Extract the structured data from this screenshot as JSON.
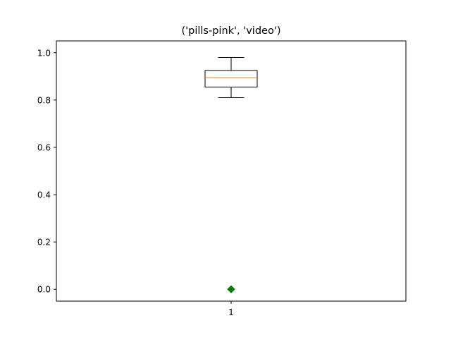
{
  "chart_data": {
    "type": "box",
    "title": "('pills-pink', 'video')",
    "xlabel": "",
    "ylabel": "",
    "categories": [
      "1"
    ],
    "ylim": [
      -0.05,
      1.05
    ],
    "yticks": [
      0.0,
      0.2,
      0.4,
      0.6,
      0.8,
      1.0
    ],
    "ytick_labels": [
      "0.0",
      "0.2",
      "0.4",
      "0.6",
      "0.8",
      "1.0"
    ],
    "grid": false,
    "boxes": [
      {
        "category": "1",
        "whisker_low": 0.81,
        "q1": 0.855,
        "median": 0.895,
        "q3": 0.925,
        "whisker_high": 0.98,
        "fliers": [
          0.0
        ]
      }
    ],
    "colors": {
      "box": "#000000",
      "median": "#ff7f0e",
      "flier": "#008000"
    }
  }
}
